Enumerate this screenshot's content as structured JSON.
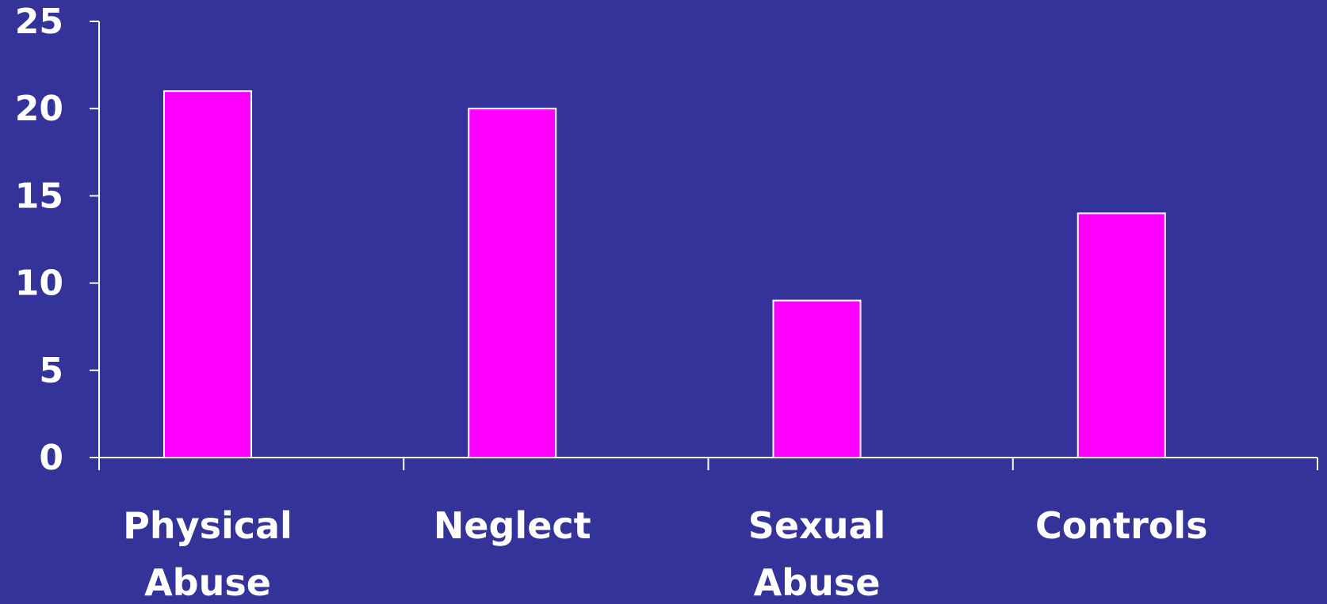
{
  "chart_data": {
    "type": "bar",
    "categories": [
      [
        "Physical",
        "Abuse"
      ],
      [
        "Neglect"
      ],
      [
        "Sexual",
        "Abuse"
      ],
      [
        "Controls"
      ]
    ],
    "values": [
      21,
      20,
      9,
      14
    ],
    "yticks": [
      "0",
      "5",
      "10",
      "15",
      "20",
      "25"
    ],
    "ylim": [
      0,
      25
    ],
    "grid": false,
    "legend": "none",
    "colors": {
      "background": "#333399",
      "bar_fill": "#ff00ff",
      "bar_stroke": "#ffffff",
      "axis": "#ffffff",
      "text": "#ffffff"
    }
  }
}
